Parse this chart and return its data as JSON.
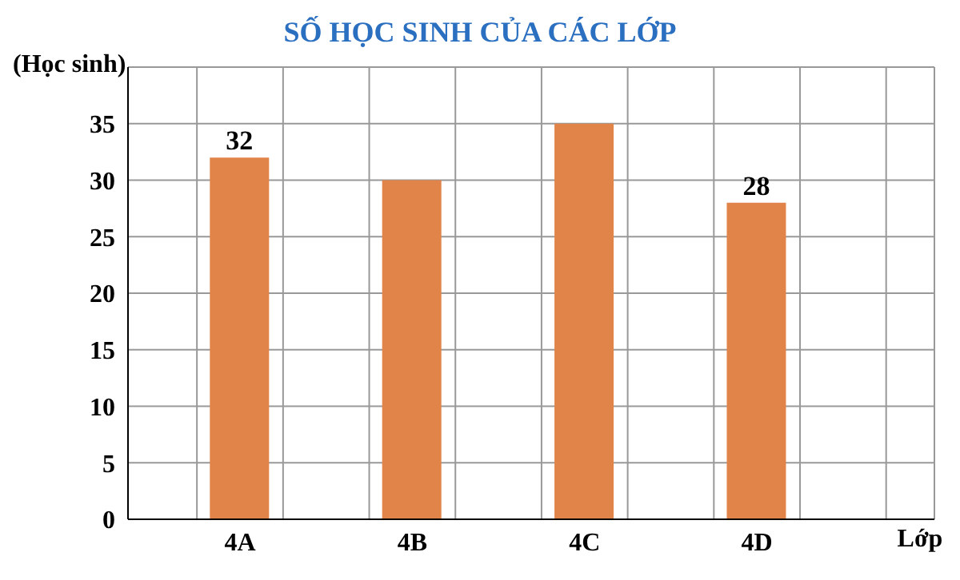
{
  "chart_data": {
    "type": "bar",
    "title": "SỐ HỌC SINH CỦA CÁC LỚP",
    "ylabel": "(Học sinh)",
    "xlabel": "Lớp",
    "categories": [
      "4A",
      "4B",
      "4C",
      "4D"
    ],
    "values": [
      32,
      30,
      35,
      28
    ],
    "color": "#e0844a",
    "value_labels": [
      "32",
      null,
      null,
      "28"
    ],
    "ylim": [
      0,
      40
    ],
    "yticks": [
      0,
      5,
      10,
      15,
      20,
      25,
      30,
      35,
      {
        "value": 40,
        "label": null
      }
    ],
    "grid": true
  }
}
